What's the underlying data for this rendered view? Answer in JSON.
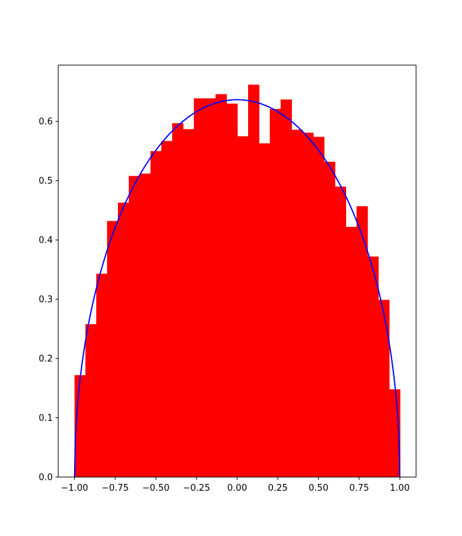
{
  "chart_data": {
    "type": "bar",
    "title": "",
    "xlabel": "",
    "ylabel": "",
    "xlim": [
      -1.1,
      1.1
    ],
    "ylim": [
      0,
      0.695
    ],
    "grid": false,
    "bar_color": "#ff0000",
    "curve_color": "#0000ff",
    "bins": {
      "start": -1.0,
      "width": 0.0667,
      "values": [
        0.172,
        0.258,
        0.343,
        0.432,
        0.463,
        0.508,
        0.512,
        0.55,
        0.567,
        0.597,
        0.587,
        0.639,
        0.639,
        0.646,
        0.63,
        0.575,
        0.662,
        0.563,
        0.621,
        0.637,
        0.586,
        0.581,
        0.574,
        0.532,
        0.49,
        0.422,
        0.457,
        0.372,
        0.299,
        0.148
      ]
    },
    "curve": {
      "name": "",
      "formula": "2/pi*sqrt(1-x^2)",
      "x_range": [
        -1.0,
        1.0
      ]
    },
    "x_ticks": [
      {
        "value": -1.0,
        "label": "−1.00"
      },
      {
        "value": -0.75,
        "label": "−0.75"
      },
      {
        "value": -0.5,
        "label": "−0.50"
      },
      {
        "value": -0.25,
        "label": "−0.25"
      },
      {
        "value": 0.0,
        "label": "0.00"
      },
      {
        "value": 0.25,
        "label": "0.25"
      },
      {
        "value": 0.5,
        "label": "0.50"
      },
      {
        "value": 0.75,
        "label": "0.75"
      },
      {
        "value": 1.0,
        "label": "1.00"
      }
    ],
    "y_ticks": [
      {
        "value": 0.0,
        "label": "0.0"
      },
      {
        "value": 0.1,
        "label": "0.1"
      },
      {
        "value": 0.2,
        "label": "0.2"
      },
      {
        "value": 0.3,
        "label": "0.3"
      },
      {
        "value": 0.4,
        "label": "0.4"
      },
      {
        "value": 0.5,
        "label": "0.5"
      },
      {
        "value": 0.6,
        "label": "0.6"
      }
    ]
  }
}
